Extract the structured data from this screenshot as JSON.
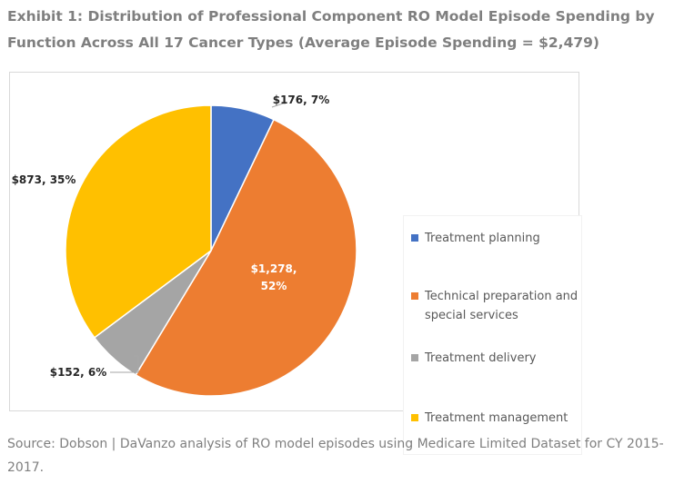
{
  "title": "Exhibit 1: Distribution of Professional Component RO Model Episode Spending by Function Across All 17 Cancer Types (Average Episode Spending = $2,479)",
  "source": "Source: Dobson | DaVanzo analysis of RO model episodes using Medicare Limited Dataset for CY 2015-2017.",
  "chart_data": {
    "type": "pie",
    "title": "",
    "legend_placement": "right",
    "slices": [
      {
        "label": "Treatment planning",
        "value": 176,
        "percent": 7,
        "data_label": "$176, 7%",
        "color": "#4472c4"
      },
      {
        "label": "Technical preparation and special services",
        "value": 1278,
        "percent": 52,
        "data_label": "$1,278, 52%",
        "color": "#ed7d31"
      },
      {
        "label": "Treatment delivery",
        "value": 152,
        "percent": 6,
        "data_label": "$152, 6%",
        "color": "#a5a5a5"
      },
      {
        "label": "Treatment management",
        "value": 873,
        "percent": 35,
        "data_label": "$873, 35%",
        "color": "#ffc000"
      }
    ]
  }
}
